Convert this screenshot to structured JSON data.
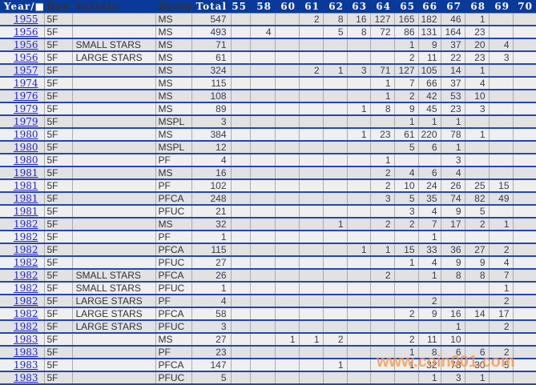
{
  "table": {
    "columns": [
      "Year/■",
      "Den",
      "Variety",
      "Desig",
      "Total",
      "55",
      "58",
      "60",
      "61",
      "62",
      "63",
      "64",
      "65",
      "66",
      "67",
      "68",
      "69",
      "70"
    ],
    "grade_columns": [
      "55",
      "58",
      "60",
      "61",
      "62",
      "63",
      "64",
      "65",
      "66",
      "67",
      "68",
      "69",
      "70"
    ],
    "rows": [
      {
        "year": "1955",
        "den": "5F",
        "variety": "",
        "desig": "MS",
        "total": "547",
        "grades": {
          "61": "2",
          "62": "8",
          "63": "16",
          "64": "127",
          "65": "165",
          "66": "182",
          "67": "46",
          "68": "1"
        }
      },
      {
        "year": "1956",
        "den": "5F",
        "variety": "",
        "desig": "MS",
        "total": "493",
        "grades": {
          "58": "4",
          "62": "5",
          "63": "8",
          "64": "72",
          "65": "86",
          "66": "131",
          "67": "164",
          "68": "23"
        }
      },
      {
        "year": "1956",
        "den": "5F",
        "variety": "SMALL STARS",
        "desig": "MS",
        "total": "71",
        "grades": {
          "65": "1",
          "66": "9",
          "67": "37",
          "68": "20",
          "69": "4"
        }
      },
      {
        "year": "1956",
        "den": "5F",
        "variety": "LARGE STARS",
        "desig": "MS",
        "total": "61",
        "grades": {
          "65": "2",
          "66": "11",
          "67": "22",
          "68": "23",
          "69": "3"
        }
      },
      {
        "year": "1957",
        "den": "5F",
        "variety": "",
        "desig": "MS",
        "total": "324",
        "grades": {
          "61": "2",
          "62": "1",
          "63": "3",
          "64": "71",
          "65": "127",
          "66": "105",
          "67": "14",
          "68": "1"
        }
      },
      {
        "year": "1974",
        "den": "5F",
        "variety": "",
        "desig": "MS",
        "total": "115",
        "grades": {
          "64": "1",
          "65": "7",
          "66": "66",
          "67": "37",
          "68": "4"
        }
      },
      {
        "year": "1976",
        "den": "5F",
        "variety": "",
        "desig": "MS",
        "total": "108",
        "grades": {
          "64": "1",
          "65": "2",
          "66": "42",
          "67": "53",
          "68": "10"
        }
      },
      {
        "year": "1979",
        "den": "5F",
        "variety": "",
        "desig": "MS",
        "total": "89",
        "grades": {
          "63": "1",
          "64": "8",
          "65": "9",
          "66": "45",
          "67": "23",
          "68": "3"
        }
      },
      {
        "year": "1979",
        "den": "5F",
        "variety": "",
        "desig": "MSPL",
        "total": "3",
        "grades": {
          "65": "1",
          "66": "1",
          "67": "1"
        }
      },
      {
        "year": "1980",
        "den": "5F",
        "variety": "",
        "desig": "MS",
        "total": "384",
        "grades": {
          "63": "1",
          "64": "23",
          "65": "61",
          "66": "220",
          "67": "78",
          "68": "1"
        }
      },
      {
        "year": "1980",
        "den": "5F",
        "variety": "",
        "desig": "MSPL",
        "total": "12",
        "grades": {
          "65": "5",
          "66": "6",
          "67": "1"
        }
      },
      {
        "year": "1980",
        "den": "5F",
        "variety": "",
        "desig": "PF",
        "total": "4",
        "grades": {
          "64": "1",
          "67": "3"
        }
      },
      {
        "year": "1981",
        "den": "5F",
        "variety": "",
        "desig": "MS",
        "total": "16",
        "grades": {
          "64": "2",
          "65": "4",
          "66": "6",
          "67": "4"
        }
      },
      {
        "year": "1981",
        "den": "5F",
        "variety": "",
        "desig": "PF",
        "total": "102",
        "grades": {
          "64": "2",
          "65": "10",
          "66": "24",
          "67": "26",
          "68": "25",
          "69": "15"
        }
      },
      {
        "year": "1981",
        "den": "5F",
        "variety": "",
        "desig": "PFCA",
        "total": "248",
        "grades": {
          "64": "3",
          "65": "5",
          "66": "35",
          "67": "74",
          "68": "82",
          "69": "49"
        }
      },
      {
        "year": "1981",
        "den": "5F",
        "variety": "",
        "desig": "PFUC",
        "total": "21",
        "grades": {
          "65": "3",
          "66": "4",
          "67": "9",
          "68": "5"
        }
      },
      {
        "year": "1982",
        "den": "5F",
        "variety": "",
        "desig": "MS",
        "total": "32",
        "grades": {
          "62": "1",
          "64": "2",
          "65": "2",
          "66": "7",
          "67": "17",
          "68": "2",
          "69": "1"
        }
      },
      {
        "year": "1982",
        "den": "5F",
        "variety": "",
        "desig": "PF",
        "total": "1",
        "grades": {
          "66": "1"
        }
      },
      {
        "year": "1982",
        "den": "5F",
        "variety": "",
        "desig": "PFCA",
        "total": "115",
        "grades": {
          "63": "1",
          "64": "1",
          "65": "15",
          "66": "33",
          "67": "36",
          "68": "27",
          "69": "2"
        }
      },
      {
        "year": "1982",
        "den": "5F",
        "variety": "",
        "desig": "PFUC",
        "total": "27",
        "grades": {
          "65": "1",
          "66": "4",
          "67": "9",
          "68": "9",
          "69": "4"
        }
      },
      {
        "year": "1982",
        "den": "5F",
        "variety": "SMALL STARS",
        "desig": "PFCA",
        "total": "26",
        "grades": {
          "64": "2",
          "66": "1",
          "67": "8",
          "68": "8",
          "69": "7"
        }
      },
      {
        "year": "1982",
        "den": "5F",
        "variety": "SMALL STARS",
        "desig": "PFUC",
        "total": "1",
        "grades": {
          "69": "1"
        }
      },
      {
        "year": "1982",
        "den": "5F",
        "variety": "LARGE STARS",
        "desig": "PF",
        "total": "4",
        "grades": {
          "66": "2",
          "69": "2"
        }
      },
      {
        "year": "1982",
        "den": "5F",
        "variety": "LARGE STARS",
        "desig": "PFCA",
        "total": "58",
        "grades": {
          "65": "2",
          "66": "9",
          "67": "16",
          "68": "14",
          "69": "17"
        }
      },
      {
        "year": "1982",
        "den": "5F",
        "variety": "LARGE STARS",
        "desig": "PFUC",
        "total": "3",
        "grades": {
          "67": "1",
          "69": "2"
        }
      },
      {
        "year": "1983",
        "den": "5F",
        "variety": "",
        "desig": "MS",
        "total": "27",
        "grades": {
          "60": "1",
          "61": "1",
          "62": "2",
          "65": "2",
          "66": "11",
          "67": "10"
        }
      },
      {
        "year": "1983",
        "den": "5F",
        "variety": "",
        "desig": "PF",
        "total": "23",
        "grades": {
          "65": "1",
          "66": "8",
          "67": "6",
          "68": "6",
          "69": "2"
        }
      },
      {
        "year": "1983",
        "den": "5F",
        "variety": "",
        "desig": "PFCA",
        "total": "147",
        "grades": {
          "62": "1",
          "65": "1",
          "66": "32",
          "67": "78",
          "68": "30",
          "69": "5"
        }
      },
      {
        "year": "1983",
        "den": "5F",
        "variety": "",
        "desig": "PFUC",
        "total": "5",
        "grades": {
          "66": "1",
          "67": "3",
          "68": "1"
        }
      }
    ]
  },
  "watermark": {
    "text": "www.coin001.com"
  },
  "colors": {
    "header_bg": "#0A3A99",
    "separator_blue": "#2346B4",
    "row_dark": "#E2E2E2",
    "row_light": "#EFEFEF",
    "year_link_blue": "#2121CE",
    "watermark_orange": "#F79646"
  }
}
